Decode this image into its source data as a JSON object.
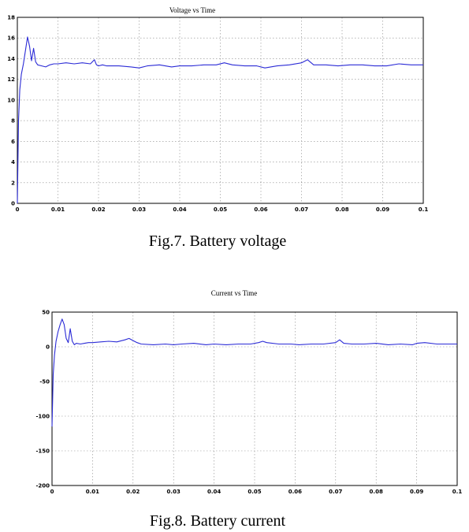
{
  "chart_data": [
    {
      "type": "line",
      "title": "Voltage vs Time",
      "caption": "Fig.7. Battery voltage",
      "xlabel": "",
      "ylabel": "",
      "xlim": [
        0,
        0.1
      ],
      "ylim": [
        0,
        18
      ],
      "x_ticks": [
        "0",
        "0.01",
        "0.02",
        "0.03",
        "0.04",
        "0.05",
        "0.06",
        "0.07",
        "0.08",
        "0.09",
        "0.1"
      ],
      "y_ticks": [
        "0",
        "2",
        "4",
        "6",
        "8",
        "10",
        "12",
        "14",
        "16",
        "18"
      ],
      "grid": true,
      "color": "#2b2bd6",
      "series": [
        {
          "x": [
            0,
            0.0003,
            0.0006,
            0.001,
            0.0015,
            0.002,
            0.0025,
            0.003,
            0.0035,
            0.004,
            0.0045,
            0.005,
            0.006,
            0.007,
            0.008,
            0.009,
            0.01,
            0.012,
            0.014,
            0.016,
            0.018,
            0.019,
            0.0195,
            0.02,
            0.021,
            0.022,
            0.025,
            0.028,
            0.03,
            0.032,
            0.035,
            0.038,
            0.04,
            0.043,
            0.046,
            0.049,
            0.051,
            0.053,
            0.056,
            0.059,
            0.061,
            0.064,
            0.067,
            0.07,
            0.0715,
            0.073,
            0.076,
            0.079,
            0.082,
            0.085,
            0.088,
            0.091,
            0.094,
            0.097,
            0.1
          ],
          "y": [
            0,
            8,
            11,
            12.5,
            13.5,
            14.8,
            16.1,
            15.2,
            13.8,
            15.0,
            13.7,
            13.4,
            13.3,
            13.2,
            13.4,
            13.5,
            13.5,
            13.6,
            13.5,
            13.6,
            13.5,
            13.9,
            13.4,
            13.3,
            13.4,
            13.3,
            13.3,
            13.2,
            13.1,
            13.3,
            13.4,
            13.2,
            13.3,
            13.3,
            13.4,
            13.4,
            13.6,
            13.4,
            13.3,
            13.3,
            13.1,
            13.3,
            13.4,
            13.6,
            13.9,
            13.4,
            13.4,
            13.3,
            13.4,
            13.4,
            13.3,
            13.3,
            13.5,
            13.4,
            13.4
          ]
        }
      ]
    },
    {
      "type": "line",
      "title": "Current vs Time",
      "caption": "Fig.8. Battery current",
      "xlabel": "",
      "ylabel": "",
      "xlim": [
        0,
        0.1
      ],
      "ylim": [
        -200,
        50
      ],
      "x_ticks": [
        "0",
        "0.01",
        "0.02",
        "0.03",
        "0.04",
        "0.05",
        "0.06",
        "0.07",
        "0.08",
        "0.09",
        "0.1"
      ],
      "y_ticks": [
        "-200",
        "-150",
        "-100",
        "-50",
        "0",
        "50"
      ],
      "grid": true,
      "color": "#2b2bd6",
      "series": [
        {
          "x": [
            0,
            0.0003,
            0.0006,
            0.001,
            0.0015,
            0.002,
            0.0025,
            0.003,
            0.0035,
            0.004,
            0.0045,
            0.005,
            0.0055,
            0.006,
            0.007,
            0.008,
            0.009,
            0.01,
            0.012,
            0.014,
            0.016,
            0.018,
            0.019,
            0.02,
            0.021,
            0.022,
            0.025,
            0.028,
            0.03,
            0.032,
            0.035,
            0.038,
            0.04,
            0.043,
            0.046,
            0.049,
            0.051,
            0.052,
            0.053,
            0.056,
            0.059,
            0.061,
            0.064,
            0.067,
            0.07,
            0.071,
            0.072,
            0.074,
            0.077,
            0.08,
            0.083,
            0.086,
            0.089,
            0.09,
            0.092,
            0.095,
            0.098,
            0.1
          ],
          "y": [
            -115,
            -40,
            -12,
            8,
            22,
            32,
            40,
            32,
            12,
            6,
            26,
            8,
            3,
            5,
            4,
            5,
            6,
            6,
            7,
            8,
            7,
            10,
            12,
            9,
            6,
            4,
            3,
            4,
            3,
            4,
            5,
            3,
            4,
            3,
            4,
            4,
            6,
            8,
            6,
            4,
            4,
            3,
            4,
            4,
            6,
            10,
            5,
            4,
            4,
            5,
            3,
            4,
            3,
            5,
            6,
            4,
            4,
            4
          ]
        }
      ]
    }
  ]
}
